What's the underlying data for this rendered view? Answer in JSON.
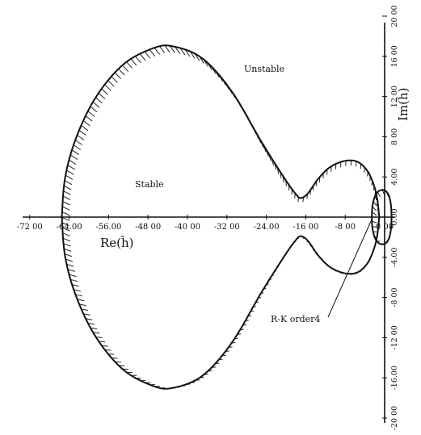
{
  "chart_data": {
    "type": "line",
    "xlabel": "Re(ĥ)",
    "ylabel": "Im(ĥ)",
    "xlim": [
      -72,
      2
    ],
    "ylim": [
      -20,
      20
    ],
    "x_ticks": [
      "-72 00",
      "-64.00",
      "-56.00",
      "-48 00",
      "-40 00",
      "-32 00",
      "-24.00",
      "-16 00",
      "-8 00",
      "0 00"
    ],
    "y_ticks": [
      "20 00",
      "16 00",
      "12 00",
      "8 00",
      "4.00",
      "0.00",
      "-4.00",
      "-8 00",
      "-12 00",
      "-16.00",
      "-20 00"
    ],
    "regions": {
      "stable": "Stable",
      "unstable": "Unstable"
    },
    "annotation": "R-K order4",
    "boundary_main_upper": [
      [
        -65.5,
        0
      ],
      [
        -64.8,
        4
      ],
      [
        -62.5,
        8
      ],
      [
        -58.5,
        12
      ],
      [
        -53,
        15.2
      ],
      [
        -47,
        16.8
      ],
      [
        -43,
        17
      ],
      [
        -37,
        15.8
      ],
      [
        -31,
        12.5
      ],
      [
        -25,
        7.5
      ],
      [
        -20.5,
        4
      ],
      [
        -18.2,
        2.4
      ],
      [
        -17,
        1.9
      ],
      [
        -15.5,
        2.4
      ],
      [
        -13.5,
        3.8
      ],
      [
        -11,
        5
      ],
      [
        -8,
        5.6
      ],
      [
        -5.5,
        5.5
      ],
      [
        -3.5,
        4.6
      ],
      [
        -2.2,
        3.2
      ],
      [
        -1.5,
        1.8
      ],
      [
        -1.1,
        0
      ]
    ],
    "boundary_inner_circle_upper": [
      [
        -2.6,
        0
      ],
      [
        -2.5,
        1
      ],
      [
        -2.1,
        1.9
      ],
      [
        -1.4,
        2.5
      ],
      [
        -0.6,
        2.7
      ],
      [
        0.2,
        2.6
      ],
      [
        0.9,
        2.1
      ],
      [
        1.3,
        1.1
      ],
      [
        1.4,
        0
      ]
    ]
  }
}
